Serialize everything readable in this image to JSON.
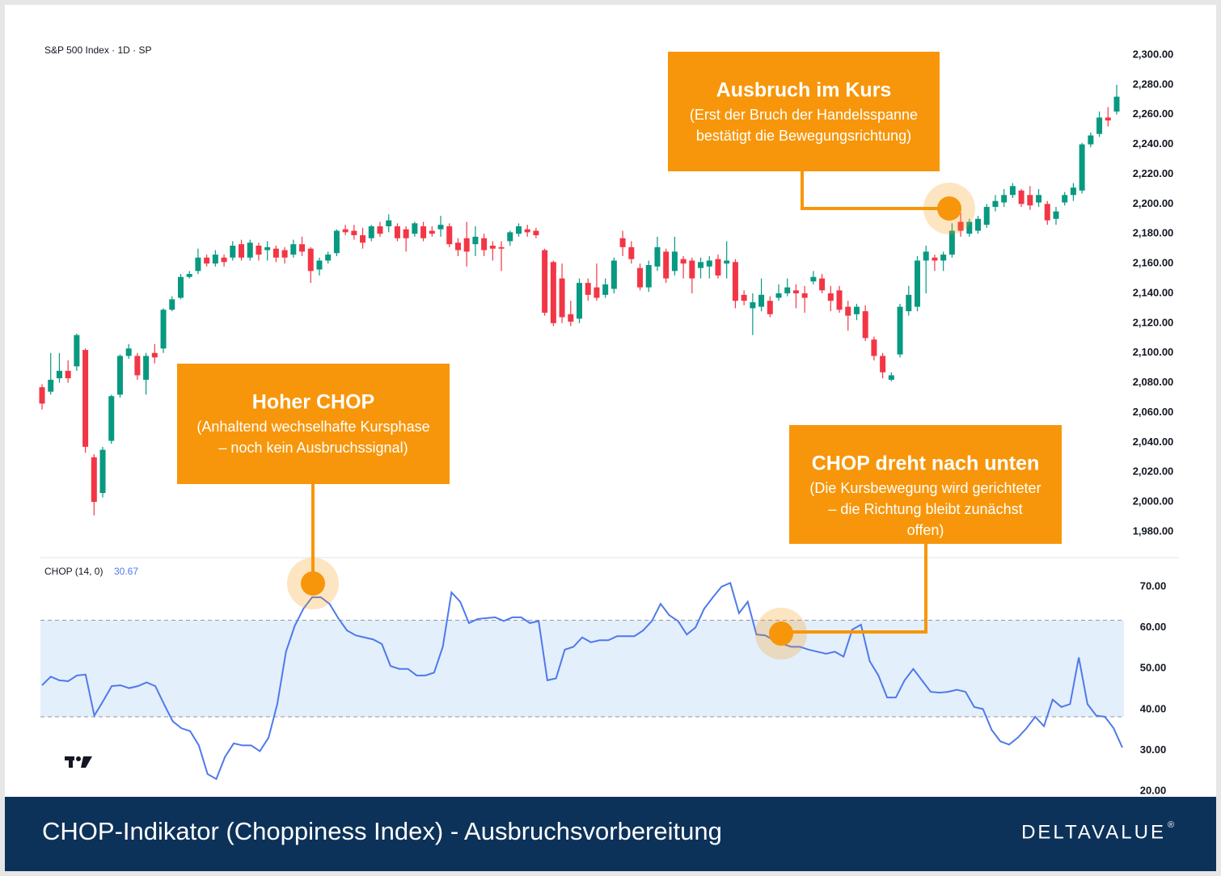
{
  "header": "S&P 500 Index · 1D · SP",
  "footer": {
    "title": "CHOP-Indikator (Choppiness Index) - Ausbruchsvorbereitung",
    "logo": "DELTAVALUE",
    "logo_mark": "®"
  },
  "annotations": [
    {
      "title": "Ausbruch im Kurs",
      "lines": [
        "(Erst der Bruch der Handelsspanne",
        "bestätigt die Bewegungsrichtung)"
      ]
    },
    {
      "title": "Hoher CHOP",
      "lines": [
        "(Anhaltend wechselhafte Kursphase",
        "– noch kein Ausbruchssignal)"
      ]
    },
    {
      "title": "CHOP dreht nach unten",
      "lines": [
        "(Die Kursbewegung wird gerichteter",
        "– die Richtung bleibt zunächst",
        "offen)"
      ]
    }
  ],
  "chart_data": [
    {
      "type": "candlestick",
      "up_color": "#089981",
      "down_color": "#f23645",
      "ylim": [
        1970,
        2310
      ],
      "yticks": [
        {
          "value": 2300,
          "label": "2,300.00"
        },
        {
          "value": 2280,
          "label": "2,280.00"
        },
        {
          "value": 2260,
          "label": "2,260.00"
        },
        {
          "value": 2240,
          "label": "2,240.00"
        },
        {
          "value": 2220,
          "label": "2,220.00"
        },
        {
          "value": 2200,
          "label": "2,200.00"
        },
        {
          "value": 2180,
          "label": "2,180.00"
        },
        {
          "value": 2160,
          "label": "2,160.00"
        },
        {
          "value": 2140,
          "label": "2,140.00"
        },
        {
          "value": 2120,
          "label": "2,120.00"
        },
        {
          "value": 2100,
          "label": "2,100.00"
        },
        {
          "value": 2080,
          "label": "2,080.00"
        },
        {
          "value": 2060,
          "label": "2,060.00"
        },
        {
          "value": 2040,
          "label": "2,040.00"
        },
        {
          "value": 2020,
          "label": "2,020.00"
        },
        {
          "value": 2000,
          "label": "2,000.00"
        },
        {
          "value": 1980,
          "label": "1,980.00"
        }
      ],
      "ohlc": [
        [
          2077,
          2079,
          2062,
          2066
        ],
        [
          2074,
          2100,
          2072,
          2082
        ],
        [
          2083,
          2100,
          2080,
          2088
        ],
        [
          2088,
          2095,
          2080,
          2083
        ],
        [
          2091,
          2113,
          2088,
          2112
        ],
        [
          2102,
          2103,
          2033,
          2037
        ],
        [
          2030,
          2032,
          1991,
          2000
        ],
        [
          2006,
          2037,
          2003,
          2035
        ],
        [
          2041,
          2072,
          2039,
          2071
        ],
        [
          2072,
          2099,
          2070,
          2098
        ],
        [
          2098,
          2106,
          2096,
          2103
        ],
        [
          2098,
          2100,
          2082,
          2085
        ],
        [
          2082,
          2100,
          2072,
          2098
        ],
        [
          2100,
          2106,
          2093,
          2097
        ],
        [
          2103,
          2130,
          2100,
          2129
        ],
        [
          2129,
          2138,
          2128,
          2136
        ],
        [
          2137,
          2153,
          2136,
          2151
        ],
        [
          2151,
          2155,
          2150,
          2153
        ],
        [
          2155,
          2170,
          2153,
          2164
        ],
        [
          2164,
          2166,
          2158,
          2160
        ],
        [
          2160,
          2169,
          2158,
          2166
        ],
        [
          2164,
          2166,
          2158,
          2161
        ],
        [
          2164,
          2175,
          2162,
          2172
        ],
        [
          2173,
          2176,
          2162,
          2164
        ],
        [
          2164,
          2176,
          2162,
          2174
        ],
        [
          2172,
          2174,
          2162,
          2166
        ],
        [
          2169,
          2175,
          2162,
          2171
        ],
        [
          2170,
          2172,
          2161,
          2164
        ],
        [
          2169,
          2171,
          2160,
          2164
        ],
        [
          2166,
          2176,
          2164,
          2173
        ],
        [
          2173,
          2178,
          2165,
          2168
        ],
        [
          2170,
          2171,
          2147,
          2155
        ],
        [
          2156,
          2164,
          2152,
          2162
        ],
        [
          2162,
          2168,
          2160,
          2166
        ],
        [
          2167,
          2183,
          2165,
          2182
        ],
        [
          2183,
          2186,
          2179,
          2181
        ],
        [
          2182,
          2186,
          2176,
          2179
        ],
        [
          2179,
          2184,
          2170,
          2174
        ],
        [
          2177,
          2186,
          2175,
          2185
        ],
        [
          2185,
          2188,
          2178,
          2180
        ],
        [
          2185,
          2193,
          2181,
          2189
        ],
        [
          2185,
          2187,
          2175,
          2177
        ],
        [
          2183,
          2185,
          2168,
          2177
        ],
        [
          2180,
          2188,
          2178,
          2187
        ],
        [
          2185,
          2188,
          2175,
          2177
        ],
        [
          2182,
          2185,
          2178,
          2180
        ],
        [
          2183,
          2192,
          2178,
          2186
        ],
        [
          2185,
          2187,
          2171,
          2173
        ],
        [
          2174,
          2177,
          2165,
          2169
        ],
        [
          2177,
          2188,
          2158,
          2168
        ],
        [
          2173,
          2185,
          2165,
          2178
        ],
        [
          2177,
          2180,
          2165,
          2169
        ],
        [
          2172,
          2175,
          2162,
          2170
        ],
        [
          2171,
          2175,
          2155,
          2170
        ],
        [
          2175,
          2182,
          2172,
          2181
        ],
        [
          2180,
          2187,
          2178,
          2185
        ],
        [
          2183,
          2186,
          2178,
          2181
        ],
        [
          2182,
          2184,
          2177,
          2179
        ],
        [
          2169,
          2170,
          2125,
          2127
        ],
        [
          2161,
          2162,
          2118,
          2120
        ],
        [
          2150,
          2160,
          2120,
          2124
        ],
        [
          2126,
          2135,
          2118,
          2121
        ],
        [
          2123,
          2150,
          2120,
          2147
        ],
        [
          2147,
          2150,
          2135,
          2139
        ],
        [
          2144,
          2160,
          2135,
          2137
        ],
        [
          2139,
          2150,
          2137,
          2146
        ],
        [
          2143,
          2164,
          2140,
          2162
        ],
        [
          2177,
          2182,
          2165,
          2171
        ],
        [
          2171,
          2175,
          2160,
          2163
        ],
        [
          2157,
          2160,
          2142,
          2144
        ],
        [
          2144,
          2162,
          2141,
          2159
        ],
        [
          2158,
          2178,
          2155,
          2171
        ],
        [
          2168,
          2170,
          2147,
          2150
        ],
        [
          2155,
          2178,
          2152,
          2168
        ],
        [
          2163,
          2165,
          2150,
          2160
        ],
        [
          2162,
          2164,
          2140,
          2150
        ],
        [
          2157,
          2164,
          2150,
          2161
        ],
        [
          2158,
          2165,
          2150,
          2162
        ],
        [
          2163,
          2166,
          2150,
          2152
        ],
        [
          2160,
          2175,
          2150,
          2162
        ],
        [
          2161,
          2163,
          2130,
          2135
        ],
        [
          2139,
          2142,
          2132,
          2135
        ],
        [
          2130,
          2140,
          2112,
          2134
        ],
        [
          2131,
          2150,
          2128,
          2139
        ],
        [
          2135,
          2138,
          2124,
          2126
        ],
        [
          2137,
          2146,
          2135,
          2140
        ],
        [
          2140,
          2150,
          2138,
          2144
        ],
        [
          2142,
          2146,
          2130,
          2140
        ],
        [
          2140,
          2145,
          2127,
          2137
        ],
        [
          2148,
          2155,
          2146,
          2151
        ],
        [
          2150,
          2153,
          2140,
          2142
        ],
        [
          2140,
          2145,
          2128,
          2135
        ],
        [
          2142,
          2145,
          2127,
          2129
        ],
        [
          2131,
          2135,
          2115,
          2125
        ],
        [
          2126,
          2133,
          2122,
          2131
        ],
        [
          2128,
          2132,
          2108,
          2110
        ],
        [
          2109,
          2111,
          2095,
          2098
        ],
        [
          2098,
          2100,
          2083,
          2087
        ],
        [
          2082,
          2087,
          2081,
          2085
        ],
        [
          2099,
          2133,
          2097,
          2131
        ],
        [
          2128,
          2145,
          2125,
          2139
        ],
        [
          2131,
          2165,
          2128,
          2162
        ],
        [
          2162,
          2172,
          2140,
          2168
        ],
        [
          2164,
          2166,
          2155,
          2162
        ],
        [
          2162,
          2168,
          2155,
          2166
        ],
        [
          2166,
          2187,
          2164,
          2182
        ],
        [
          2188,
          2194,
          2178,
          2182
        ],
        [
          2180,
          2190,
          2178,
          2188
        ],
        [
          2182,
          2192,
          2180,
          2190
        ],
        [
          2186,
          2200,
          2184,
          2198
        ],
        [
          2198,
          2206,
          2195,
          2202
        ],
        [
          2201,
          2210,
          2198,
          2206
        ],
        [
          2206,
          2214,
          2204,
          2212
        ],
        [
          2209,
          2210,
          2198,
          2200
        ],
        [
          2206,
          2212,
          2196,
          2199
        ],
        [
          2201,
          2210,
          2198,
          2206
        ],
        [
          2200,
          2202,
          2186,
          2189
        ],
        [
          2190,
          2198,
          2186,
          2195
        ],
        [
          2201,
          2208,
          2199,
          2206
        ],
        [
          2206,
          2214,
          2202,
          2211
        ],
        [
          2209,
          2241,
          2207,
          2240
        ],
        [
          2240,
          2248,
          2238,
          2246
        ],
        [
          2247,
          2262,
          2245,
          2258
        ],
        [
          2258,
          2265,
          2252,
          2256
        ],
        [
          2262,
          2280,
          2260,
          2272
        ]
      ]
    },
    {
      "type": "line",
      "name": "CHOP (14, 0)",
      "color": "#4f79ec",
      "band_color": "#e3effb",
      "bands": [
        38.2,
        61.8
      ],
      "ylim": [
        15,
        75
      ],
      "yticks": [
        {
          "value": 70,
          "label": "70.00"
        },
        {
          "value": 60,
          "label": "60.00"
        },
        {
          "value": 50,
          "label": "50.00"
        },
        {
          "value": 40,
          "label": "40.00"
        },
        {
          "value": 30,
          "label": "30.00"
        },
        {
          "value": 20,
          "label": "20.00"
        }
      ],
      "values": [
        45.9,
        48.0,
        47.1,
        46.9,
        48.3,
        48.5,
        38.5,
        42.0,
        45.7,
        45.9,
        45.2,
        45.7,
        46.6,
        45.7,
        41.3,
        37.1,
        35.4,
        34.7,
        31.2,
        24.2,
        23.0,
        28.4,
        31.7,
        31.2,
        31.2,
        29.8,
        33.1,
        41.3,
        54.1,
        60.4,
        64.6,
        67.4,
        67.4,
        65.8,
        62.3,
        59.3,
        58.1,
        57.6,
        57.1,
        56.0,
        50.6,
        49.9,
        49.9,
        48.3,
        48.3,
        49.0,
        55.3,
        68.6,
        66.3,
        61.1,
        62.1,
        62.3,
        62.5,
        61.6,
        62.5,
        62.5,
        61.1,
        61.6,
        47.1,
        47.6,
        54.6,
        55.3,
        57.6,
        56.4,
        56.9,
        56.9,
        57.9,
        57.9,
        57.9,
        59.3,
        61.6,
        65.8,
        63.0,
        61.6,
        58.3,
        60.0,
        64.6,
        67.4,
        70.0,
        70.9,
        63.5,
        66.3,
        58.3,
        58.1,
        56.9,
        56.0,
        55.3,
        55.3,
        54.6,
        54.1,
        53.6,
        54.1,
        52.9,
        59.5,
        60.7,
        51.8,
        48.3,
        42.9,
        42.9,
        47.1,
        49.9,
        47.1,
        44.3,
        44.1,
        44.3,
        44.8,
        44.3,
        40.6,
        40.1,
        35.0,
        32.2,
        31.4,
        33.1,
        35.4,
        38.2,
        35.9,
        42.4,
        40.6,
        41.3,
        52.7,
        41.3,
        38.5,
        38.2,
        35.4,
        30.67
      ]
    }
  ]
}
